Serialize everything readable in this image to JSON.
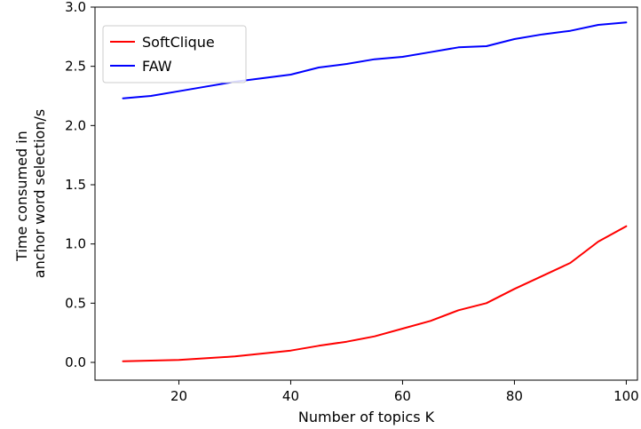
{
  "chart_data": {
    "type": "line",
    "title": "",
    "xlabel": "Number of topics K",
    "ylabel_lines": [
      "Time consumed in",
      "anchor word selection/s"
    ],
    "xlim": [
      5,
      102
    ],
    "ylim": [
      -0.15,
      3.0
    ],
    "xticks": [
      20,
      40,
      60,
      80,
      100
    ],
    "yticks": [
      0.0,
      0.5,
      1.0,
      1.5,
      2.0,
      2.5,
      3.0
    ],
    "ytick_labels": [
      "0.0",
      "0.5",
      "1.0",
      "1.5",
      "2.0",
      "2.5",
      "3.0"
    ],
    "grid": false,
    "legend_position": "top-left",
    "x": [
      10,
      15,
      20,
      25,
      30,
      35,
      40,
      45,
      50,
      55,
      60,
      65,
      70,
      75,
      80,
      85,
      90,
      95,
      100
    ],
    "series": [
      {
        "name": "SoftClique",
        "color": "#ff0000",
        "values": [
          0.01,
          0.015,
          0.02,
          0.035,
          0.05,
          0.075,
          0.1,
          0.14,
          0.175,
          0.22,
          0.285,
          0.35,
          0.44,
          0.5,
          0.62,
          0.73,
          0.84,
          1.02,
          1.15
        ]
      },
      {
        "name": "FAW",
        "color": "#0000ff",
        "values": [
          2.23,
          2.25,
          2.29,
          2.33,
          2.37,
          2.4,
          2.43,
          2.49,
          2.52,
          2.56,
          2.58,
          2.62,
          2.66,
          2.67,
          2.73,
          2.77,
          2.8,
          2.85,
          2.87
        ]
      }
    ]
  }
}
